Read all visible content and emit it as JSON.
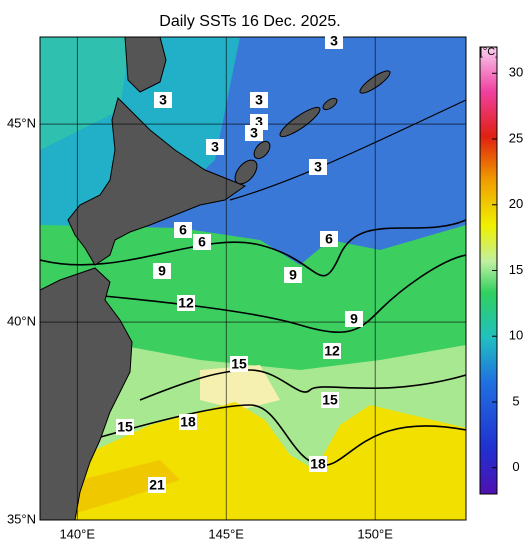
{
  "map": {
    "title": "Daily SSTs 16 Dec. 2025.",
    "lonlim": [
      138.75,
      153.05
    ],
    "latlim": [
      35,
      47.2
    ],
    "lon_ticks": [
      {
        "value": 140,
        "label": "140°E"
      },
      {
        "value": 145,
        "label": "145°E"
      },
      {
        "value": 150,
        "label": "150°E"
      }
    ],
    "lat_ticks": [
      {
        "value": 35,
        "label": "35°N"
      },
      {
        "value": 40,
        "label": "40°N"
      },
      {
        "value": 45,
        "label": "45°N"
      }
    ],
    "contour_labels": [
      3,
      3,
      3,
      3,
      3,
      3,
      3,
      6,
      6,
      6,
      9,
      9,
      9,
      12,
      12,
      15,
      15,
      15,
      18,
      18,
      21
    ],
    "colorbar": {
      "label": "[°C]",
      "lim": [
        -2,
        32
      ],
      "ticks": [
        0,
        5,
        10,
        15,
        20,
        25,
        30
      ]
    }
  }
}
